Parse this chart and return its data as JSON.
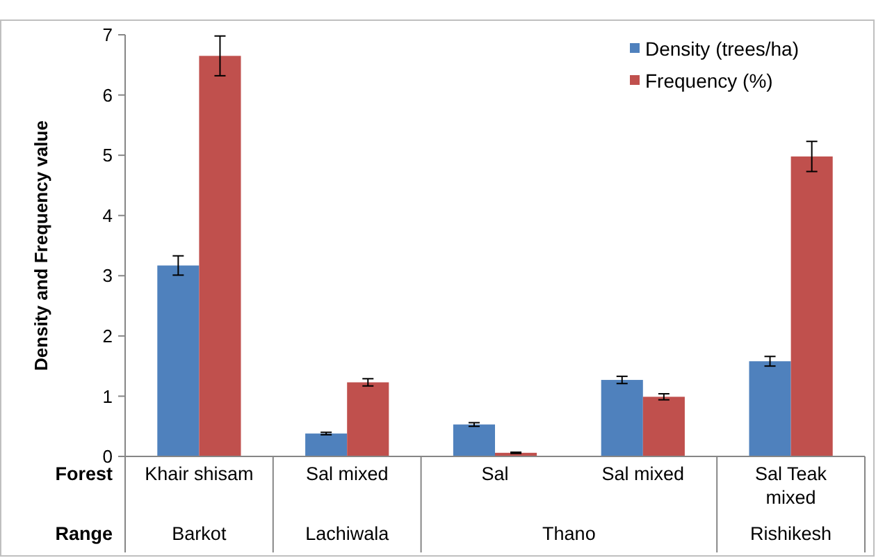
{
  "chart_data": {
    "type": "bar",
    "ylabel": "Density and Frequency value",
    "categories": [
      "Khair shisam",
      "Sal mixed",
      "Sal",
      "Sal mixed",
      "Sal Teak mixed"
    ],
    "series": [
      {
        "name": "Density (trees/ha)",
        "color": "#4f81bd",
        "values": [
          3.17,
          0.38,
          0.53,
          1.27,
          1.58
        ],
        "errors": [
          0.16,
          0.02,
          0.03,
          0.06,
          0.08
        ]
      },
      {
        "name": "Frequency (%)",
        "color": "#c0504d",
        "values": [
          6.65,
          1.23,
          0.06,
          0.99,
          4.98
        ],
        "errors": [
          0.33,
          0.06,
          0.01,
          0.05,
          0.25
        ]
      }
    ],
    "ylim": [
      0,
      7
    ],
    "yticks": [
      0,
      1,
      2,
      3,
      4,
      5,
      6,
      7
    ],
    "grid": false,
    "legend": "top right",
    "annotations": [
      "Forest",
      "Range",
      "Barkot",
      "Lachiwala",
      "Thano",
      "Rishikesh"
    ]
  }
}
